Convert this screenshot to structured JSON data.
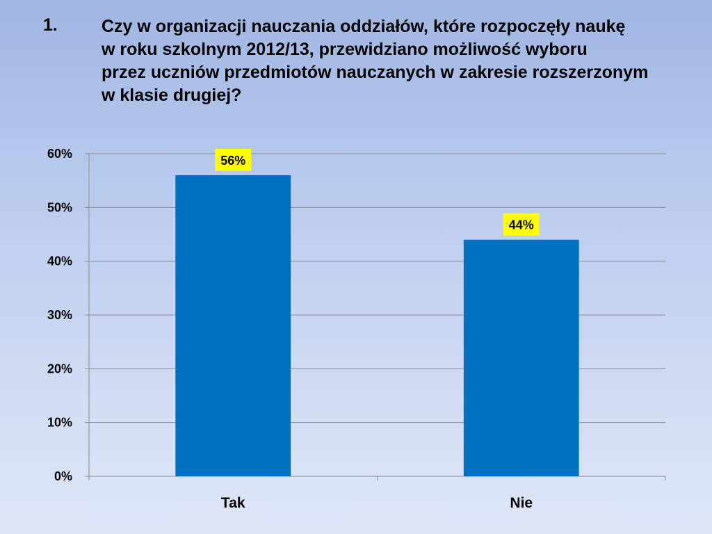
{
  "question": {
    "number": "1.",
    "lines": [
      "Czy w organizacji nauczania oddziałów, które rozpoczęły  naukę",
      "w roku szkolnym  2012/13, przewidziano możliwość wyboru",
      "przez uczniów przedmiotów nauczanych w zakresie rozszerzonym",
      "w klasie drugiej?"
    ]
  },
  "chart_data": {
    "type": "bar",
    "categories": [
      "Tak",
      "Nie"
    ],
    "values": [
      56,
      44
    ],
    "data_labels": [
      "56%",
      "44%"
    ],
    "ylim": [
      0,
      60
    ],
    "yticks": [
      0,
      10,
      20,
      30,
      40,
      50,
      60
    ],
    "ytick_labels": [
      "0%",
      "10%",
      "20%",
      "30%",
      "40%",
      "50%",
      "60%"
    ],
    "grid": true,
    "legend": "none",
    "colors": {
      "bar": "#0070c0",
      "data_label_background": "#ffff00",
      "gridline": "#8c8c8c",
      "axis": "#8c8c8c"
    }
  }
}
